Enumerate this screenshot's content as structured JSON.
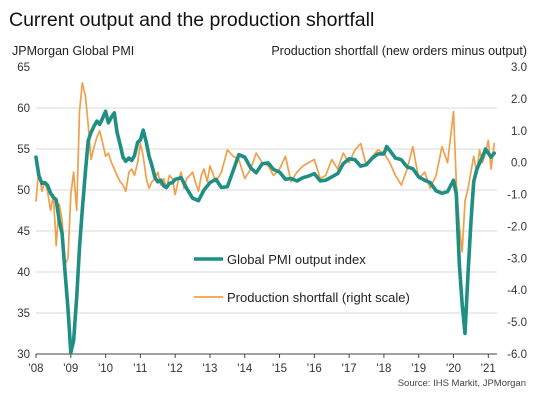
{
  "chart_data": {
    "type": "line",
    "title": "Current output and the production shortfall",
    "ylabel_left": "JPMorgan Global PMI",
    "ylabel_right": "Production shortfall (new orders minus output)",
    "source": "Source: IHS Markit, JPMorgan",
    "ylim_left": [
      30,
      65
    ],
    "ylim_right": [
      -6.0,
      3.0
    ],
    "y_ticks_left": [
      "30",
      "35",
      "40",
      "45",
      "50",
      "55",
      "60",
      "65"
    ],
    "y_ticks_right": [
      "-6.0",
      "-5.0",
      "-4.0",
      "-3.0",
      "-2.0",
      "-1.0",
      "0.0",
      "1.0",
      "2.0",
      "3.0"
    ],
    "xlim": [
      2008.0,
      2021.25
    ],
    "x_ticks": [
      {
        "label": "'08",
        "year": 2008
      },
      {
        "label": "'09",
        "year": 2009
      },
      {
        "label": "'10",
        "year": 2010
      },
      {
        "label": "'11",
        "year": 2011
      },
      {
        "label": "'12",
        "year": 2012
      },
      {
        "label": "'13",
        "year": 2013
      },
      {
        "label": "'14",
        "year": 2014
      },
      {
        "label": "'15",
        "year": 2015
      },
      {
        "label": "'16",
        "year": 2016
      },
      {
        "label": "'17",
        "year": 2017
      },
      {
        "label": "'18",
        "year": 2018
      },
      {
        "label": "'19",
        "year": 2019
      },
      {
        "label": "'20",
        "year": 2020
      },
      {
        "label": "'21",
        "year": 2021
      }
    ],
    "grid": "horizontal",
    "legend_position": "center-right",
    "series": [
      {
        "name": "Global PMI output index",
        "axis": "left",
        "color": "#1f8f84",
        "width": 3.6,
        "x": [
          2008.0,
          2008.08,
          2008.17,
          2008.25,
          2008.33,
          2008.42,
          2008.5,
          2008.58,
          2008.67,
          2008.75,
          2008.83,
          2008.92,
          2009.0,
          2009.08,
          2009.17,
          2009.25,
          2009.33,
          2009.42,
          2009.5,
          2009.58,
          2009.67,
          2009.75,
          2009.83,
          2009.92,
          2010.0,
          2010.08,
          2010.17,
          2010.25,
          2010.33,
          2010.42,
          2010.5,
          2010.58,
          2010.67,
          2010.75,
          2010.83,
          2010.92,
          2011.0,
          2011.08,
          2011.17,
          2011.25,
          2011.33,
          2011.42,
          2011.5,
          2011.58,
          2011.67,
          2011.75,
          2011.83,
          2011.92,
          2012.0,
          2012.17,
          2012.33,
          2012.5,
          2012.67,
          2012.83,
          2013.0,
          2013.17,
          2013.33,
          2013.5,
          2013.67,
          2013.83,
          2014.0,
          2014.17,
          2014.33,
          2014.5,
          2014.67,
          2014.83,
          2015.0,
          2015.17,
          2015.33,
          2015.5,
          2015.67,
          2015.83,
          2016.0,
          2016.17,
          2016.33,
          2016.5,
          2016.67,
          2016.83,
          2017.0,
          2017.17,
          2017.33,
          2017.5,
          2017.67,
          2017.83,
          2018.0,
          2018.08,
          2018.17,
          2018.33,
          2018.5,
          2018.67,
          2018.83,
          2019.0,
          2019.17,
          2019.33,
          2019.5,
          2019.67,
          2019.83,
          2020.0,
          2020.08,
          2020.17,
          2020.25,
          2020.33,
          2020.42,
          2020.5,
          2020.58,
          2020.67,
          2020.75,
          2020.83,
          2020.92,
          2021.0,
          2021.08,
          2021.17
        ],
        "values": [
          54.0,
          51.8,
          50.8,
          50.9,
          50.6,
          49.6,
          49.1,
          48.8,
          46.2,
          44.7,
          40.2,
          35.5,
          30.2,
          31.6,
          36.9,
          43.0,
          47.6,
          52.2,
          56.0,
          57.0,
          57.8,
          58.4,
          58.0,
          58.8,
          59.6,
          58.2,
          58.9,
          59.4,
          57.0,
          55.5,
          54.0,
          53.5,
          53.9,
          53.6,
          54.2,
          55.8,
          56.1,
          57.3,
          55.8,
          54.1,
          53.0,
          51.5,
          51.0,
          51.2,
          50.5,
          50.3,
          50.8,
          50.9,
          51.3,
          51.5,
          50.2,
          49.0,
          48.7,
          50.0,
          50.9,
          51.3,
          50.3,
          50.4,
          52.4,
          54.3,
          54.0,
          52.7,
          52.1,
          53.2,
          53.3,
          52.5,
          52.2,
          51.3,
          51.4,
          51.1,
          51.5,
          51.7,
          52.0,
          51.1,
          51.2,
          51.6,
          52.0,
          53.2,
          53.8,
          53.7,
          52.9,
          53.1,
          53.9,
          54.4,
          54.4,
          55.3,
          54.8,
          53.9,
          53.7,
          52.8,
          52.6,
          51.6,
          51.2,
          50.9,
          49.9,
          49.6,
          49.8,
          51.2,
          49.5,
          40.8,
          36.0,
          32.5,
          40.0,
          46.0,
          51.0,
          52.5,
          53.3,
          54.0,
          55.0,
          54.5,
          54.0,
          54.5
        ]
      },
      {
        "name": "Production shortfall (right scale)",
        "axis": "right",
        "color": "#f0a04b",
        "width": 1.7,
        "x": [
          2008.0,
          2008.08,
          2008.17,
          2008.25,
          2008.33,
          2008.42,
          2008.5,
          2008.58,
          2008.67,
          2008.75,
          2008.83,
          2008.92,
          2009.0,
          2009.08,
          2009.17,
          2009.25,
          2009.33,
          2009.42,
          2009.5,
          2009.58,
          2009.67,
          2009.75,
          2009.83,
          2009.92,
          2010.0,
          2010.08,
          2010.17,
          2010.25,
          2010.33,
          2010.42,
          2010.5,
          2010.58,
          2010.67,
          2010.75,
          2010.83,
          2010.92,
          2011.0,
          2011.08,
          2011.17,
          2011.25,
          2011.33,
          2011.42,
          2011.5,
          2011.58,
          2011.67,
          2011.75,
          2011.83,
          2011.92,
          2012.0,
          2012.08,
          2012.17,
          2012.25,
          2012.33,
          2012.42,
          2012.5,
          2012.58,
          2012.67,
          2012.75,
          2012.83,
          2012.92,
          2013.0,
          2013.17,
          2013.33,
          2013.5,
          2013.67,
          2013.83,
          2014.0,
          2014.17,
          2014.33,
          2014.5,
          2014.67,
          2014.83,
          2015.0,
          2015.17,
          2015.33,
          2015.5,
          2015.67,
          2015.83,
          2016.0,
          2016.17,
          2016.33,
          2016.5,
          2016.67,
          2016.83,
          2017.0,
          2017.17,
          2017.33,
          2017.5,
          2017.67,
          2017.83,
          2018.0,
          2018.17,
          2018.33,
          2018.5,
          2018.67,
          2018.83,
          2019.0,
          2019.17,
          2019.33,
          2019.5,
          2019.67,
          2019.83,
          2020.0,
          2020.08,
          2020.17,
          2020.25,
          2020.33,
          2020.42,
          2020.5,
          2020.58,
          2020.67,
          2020.75,
          2020.83,
          2020.92,
          2021.0,
          2021.08,
          2021.17
        ],
        "values": [
          -1.2,
          -0.2,
          -0.9,
          -0.6,
          -0.9,
          -1.5,
          -1.0,
          -2.6,
          -1.3,
          -1.8,
          -3.2,
          -3.0,
          -1.0,
          -0.3,
          -1.5,
          1.6,
          2.5,
          2.1,
          1.2,
          0.1,
          0.5,
          0.8,
          1.0,
          0.6,
          0.2,
          0.3,
          0.0,
          -0.2,
          -0.4,
          -0.6,
          -0.7,
          -0.9,
          -0.3,
          -0.2,
          -0.4,
          0.0,
          0.6,
          0.2,
          -0.5,
          -0.8,
          -0.6,
          -0.5,
          -0.3,
          -0.7,
          -0.5,
          -0.8,
          -0.4,
          -0.5,
          -1.0,
          -0.6,
          -0.3,
          -0.8,
          -0.5,
          -0.4,
          -0.3,
          -0.6,
          -0.9,
          -0.4,
          -0.2,
          -0.6,
          -0.1,
          -0.6,
          -0.3,
          0.4,
          0.2,
          0.1,
          -0.5,
          -0.2,
          0.3,
          0.0,
          -0.1,
          -0.4,
          -0.2,
          0.2,
          -0.6,
          -0.3,
          -0.1,
          0.0,
          0.1,
          -0.5,
          -0.4,
          0.1,
          -0.2,
          0.3,
          0.0,
          0.4,
          0.6,
          -0.1,
          0.2,
          0.4,
          0.3,
          0.0,
          -0.4,
          -0.7,
          -0.2,
          0.5,
          -0.5,
          -0.3,
          -0.8,
          -0.4,
          0.5,
          0.0,
          1.6,
          -0.6,
          -2.0,
          -2.8,
          -1.2,
          -0.8,
          -0.3,
          0.2,
          -0.3,
          0.4,
          0.0,
          0.3,
          0.7,
          -0.2,
          0.6
        ]
      }
    ]
  }
}
